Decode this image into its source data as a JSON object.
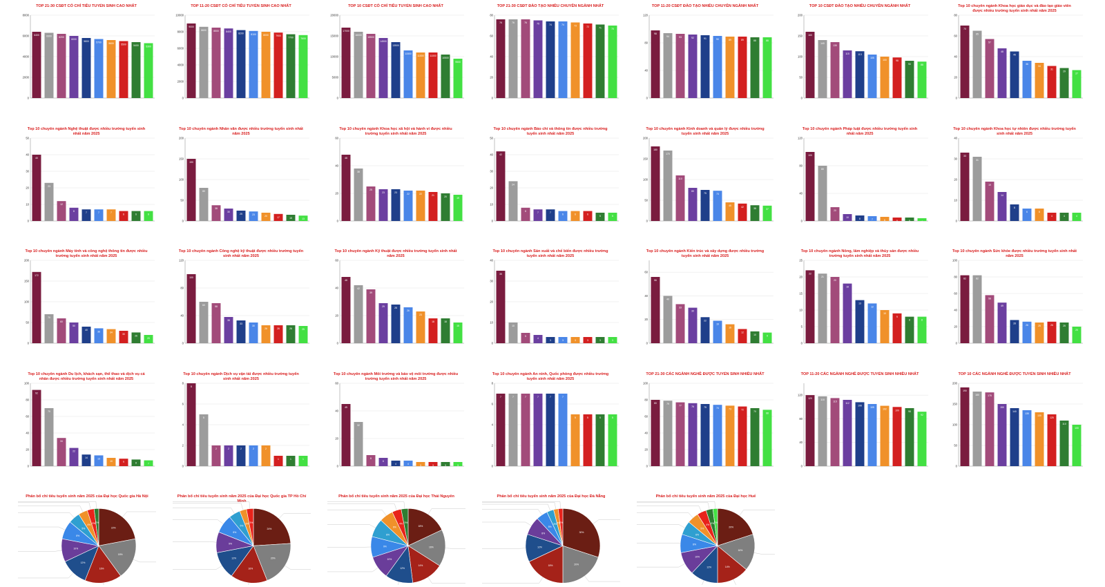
{
  "palette": [
    "#7a1c3f",
    "#9c9c9c",
    "#a24b7a",
    "#6b3fa0",
    "#1f3f8a",
    "#4a86e8",
    "#f0912a",
    "#d32020",
    "#2f7d32",
    "#43e043"
  ],
  "pie_palette": [
    "#6b1e14",
    "#7f7f7f",
    "#a52219",
    "#1f4e8c",
    "#6a3d9a",
    "#3a88e8",
    "#2f9fd0",
    "#f0912a",
    "#e8231b",
    "#2e7d32",
    "#43e043",
    "#ffe680"
  ],
  "chart_data": [
    {
      "type": "bar",
      "title": "TOP 21-30 CSĐT CÓ CHỈ TIÊU TUYỂN SINH CAO NHẤT",
      "categories": [
        "",
        "",
        "",
        "",
        "",
        "",
        "",
        "",
        "",
        ""
      ],
      "values": [
        6400,
        6300,
        6200,
        6000,
        5800,
        5700,
        5600,
        5500,
        5400,
        5300
      ],
      "ylim": [
        0,
        8000
      ],
      "yticks": [
        0,
        2000,
        4000,
        6000,
        8000
      ]
    },
    {
      "type": "bar",
      "title": "TOP 11-20 CSĐT CÓ CHỈ TIÊU TUYỂN SINH CAO NHẤT",
      "categories": [
        "",
        "",
        "",
        "",
        "",
        "",
        "",
        "",
        "",
        ""
      ],
      "values": [
        9000,
        8600,
        8500,
        8400,
        8200,
        8100,
        8000,
        7900,
        7700,
        7600
      ],
      "ylim": [
        0,
        10000
      ],
      "yticks": [
        0,
        2000,
        4000,
        6000,
        8000,
        10000
      ]
    },
    {
      "type": "bar",
      "title": "TOP 10 CSĐT CÓ CHỈ TIÊU TUYỂN SINH CAO NHẤT",
      "categories": [
        "",
        "",
        "",
        "",
        "",
        "",
        "",
        "",
        "",
        ""
      ],
      "values": [
        17000,
        16000,
        15500,
        14500,
        13500,
        11500,
        11000,
        11000,
        10500,
        9500
      ],
      "ylim": [
        0,
        20000
      ],
      "yticks": [
        0,
        5000,
        10000,
        15000,
        20000
      ]
    },
    {
      "type": "bar",
      "title": "TOP 21-30 CSĐT ĐÀO TẠO NHIỀU CHUYÊN NGÀNH NHẤT",
      "categories": [
        "",
        "",
        "",
        "",
        "",
        "",
        "",
        "",
        "",
        ""
      ],
      "values": [
        76,
        76,
        76,
        75,
        74,
        74,
        73,
        72,
        71,
        70
      ],
      "ylim": [
        0,
        80
      ],
      "yticks": [
        0,
        20,
        40,
        60,
        80
      ]
    },
    {
      "type": "bar",
      "title": "TOP 11-20 CSĐT ĐÀO TẠO NHIỀU CHUYÊN NGÀNH NHẤT",
      "categories": [
        "",
        "",
        "",
        "",
        "",
        "",
        "",
        "",
        "",
        ""
      ],
      "values": [
        98,
        94,
        93,
        92,
        91,
        90,
        89,
        89,
        88,
        88
      ],
      "ylim": [
        0,
        120
      ],
      "yticks": [
        0,
        40,
        80,
        120
      ]
    },
    {
      "type": "bar",
      "title": "TOP 10 CSĐT ĐÀO TẠO NHIỀU CHUYÊN NGÀNH NHẤT",
      "categories": [
        "",
        "",
        "",
        "",
        "",
        "",
        "",
        "",
        "",
        ""
      ],
      "values": [
        160,
        140,
        135,
        115,
        113,
        105,
        100,
        98,
        90,
        88
      ],
      "ylim": [
        0,
        200
      ],
      "yticks": [
        0,
        50,
        100,
        150,
        200
      ]
    },
    {
      "type": "bar",
      "title": "Top 10 chuyên ngành Khoa học giáo dục và đào tạo giáo viên được nhiều trường tuyển sinh nhất năm 2025",
      "categories": [
        "",
        "",
        "",
        "",
        "",
        "",
        "",
        "",
        "",
        ""
      ],
      "values": [
        70,
        65,
        57,
        48,
        45,
        36,
        34,
        31,
        29,
        27
      ],
      "ylim": [
        0,
        80
      ],
      "yticks": [
        0,
        20,
        40,
        60,
        80
      ]
    },
    {
      "type": "bar",
      "title": "Top 10 chuyên ngành Nghệ thuật được nhiều trường tuyển sinh nhất năm 2025",
      "categories": [
        "",
        "",
        "",
        "",
        "",
        "",
        "",
        "",
        "",
        ""
      ],
      "values": [
        40,
        23,
        12,
        8,
        7,
        7,
        7,
        6,
        6,
        6
      ],
      "ylim": [
        0,
        50
      ],
      "yticks": [
        0,
        10,
        20,
        30,
        40,
        50
      ]
    },
    {
      "type": "bar",
      "title": "Top 10 chuyên ngành Nhân văn được nhiều trường tuyển sinh nhất năm 2025",
      "categories": [
        "",
        "",
        "",
        "",
        "",
        "",
        "",
        "",
        "",
        ""
      ],
      "values": [
        150,
        80,
        38,
        30,
        25,
        23,
        20,
        17,
        15,
        13
      ],
      "ylim": [
        0,
        200
      ],
      "yticks": [
        0,
        50,
        100,
        150,
        200
      ]
    },
    {
      "type": "bar",
      "title": "Top 10 chuyên ngành Khoa học xã hội và hành vi được nhiều trường tuyển sinh nhất năm 2025",
      "categories": [
        "",
        "",
        "",
        "",
        "",
        "",
        "",
        "",
        "",
        ""
      ],
      "values": [
        48,
        38,
        25,
        23,
        23,
        22,
        22,
        21,
        20,
        19
      ],
      "ylim": [
        0,
        60
      ],
      "yticks": [
        0,
        20,
        40,
        60
      ]
    },
    {
      "type": "bar",
      "title": "Top 10 chuyên ngành Báo chí và thông tin được nhiều trường tuyển sinh nhất năm 2025",
      "categories": [
        "",
        "",
        "",
        "",
        "",
        "",
        "",
        "",
        "",
        ""
      ],
      "values": [
        42,
        24,
        8,
        7,
        7,
        6,
        6,
        6,
        5,
        5
      ],
      "ylim": [
        0,
        50
      ],
      "yticks": [
        0,
        10,
        20,
        30,
        40,
        50
      ]
    },
    {
      "type": "bar",
      "title": "Top 10 chuyên ngành Kinh doanh và quản lý được nhiều trường tuyển sinh nhất năm 2025",
      "categories": [
        "",
        "",
        "",
        "",
        "",
        "",
        "",
        "",
        "",
        ""
      ],
      "values": [
        180,
        170,
        110,
        80,
        75,
        73,
        45,
        42,
        38,
        37
      ],
      "ylim": [
        0,
        200
      ],
      "yticks": [
        0,
        50,
        100,
        150,
        200
      ]
    },
    {
      "type": "bar",
      "title": "Top 10 chuyên ngành Pháp luật được nhiều trường tuyển sinh nhất năm 2025",
      "categories": [
        "",
        "",
        "",
        "",
        "",
        "",
        "",
        "",
        "",
        ""
      ],
      "values": [
        100,
        80,
        20,
        10,
        8,
        7,
        6,
        5,
        5,
        4
      ],
      "ylim": [
        0,
        120
      ],
      "yticks": [
        0,
        40,
        80,
        120
      ]
    },
    {
      "type": "bar",
      "title": "Top 10 chuyên ngành Khoa học tự nhiên được nhiều trường tuyển sinh nhất năm 2025",
      "categories": [
        "",
        "",
        "",
        "",
        "",
        "",
        "",
        "",
        "",
        ""
      ],
      "values": [
        33,
        31,
        19,
        14,
        8,
        6,
        6,
        4,
        4,
        4
      ],
      "ylim": [
        0,
        40
      ],
      "yticks": [
        0,
        10,
        20,
        30,
        40
      ]
    },
    {
      "type": "bar",
      "title": "Top 10 chuyên ngành Máy tính và công nghệ thông tin được nhiều trường tuyển sinh nhất năm 2025",
      "categories": [
        "",
        "",
        "",
        "",
        "",
        "",
        "",
        "",
        "",
        ""
      ],
      "values": [
        172,
        70,
        60,
        50,
        40,
        36,
        34,
        30,
        26,
        20
      ],
      "ylim": [
        0,
        200
      ],
      "yticks": [
        0,
        50,
        100,
        150,
        200
      ]
    },
    {
      "type": "bar",
      "title": "Top 10 chuyên ngành Công nghệ kỹ thuật được nhiều trường tuyển sinh nhất năm 2025",
      "categories": [
        "",
        "",
        "",
        "",
        "",
        "",
        "",
        "",
        "",
        ""
      ],
      "values": [
        100,
        60,
        58,
        38,
        33,
        30,
        26,
        26,
        26,
        25
      ],
      "ylim": [
        0,
        120
      ],
      "yticks": [
        0,
        40,
        80,
        120
      ]
    },
    {
      "type": "bar",
      "title": "Top 10 chuyên ngành Kỹ thuật được nhiều trường tuyển sinh nhất năm 2025",
      "categories": [
        "",
        "",
        "",
        "",
        "",
        "",
        "",
        "",
        "",
        ""
      ],
      "values": [
        48,
        42,
        39,
        29,
        28,
        26,
        23,
        18,
        18,
        15
      ],
      "ylim": [
        0,
        60
      ],
      "yticks": [
        0,
        20,
        40,
        60
      ]
    },
    {
      "type": "bar",
      "title": "Top 10 chuyên ngành Sản xuất và chế biến được nhiều trường tuyển sinh nhất năm 2025",
      "categories": [
        "",
        "",
        "",
        "",
        "",
        "",
        "",
        "",
        "",
        ""
      ],
      "values": [
        35,
        10,
        5,
        4,
        3,
        3,
        3,
        3,
        3,
        3
      ],
      "ylim": [
        0,
        40
      ],
      "yticks": [
        0,
        10,
        20,
        30,
        40
      ]
    },
    {
      "type": "bar",
      "title": "Top 10 chuyên ngành Kiến trúc và xây dựng được nhiều trường tuyển sinh nhất năm 2025",
      "categories": [
        "",
        "",
        "",
        "",
        "",
        "",
        "",
        "",
        "",
        ""
      ],
      "values": [
        56,
        40,
        33,
        30,
        22,
        19,
        16,
        12,
        10,
        9
      ],
      "ylim": [
        0,
        70
      ],
      "yticks": [
        0,
        20,
        40,
        60
      ]
    },
    {
      "type": "bar",
      "title": "Top 10 chuyên ngành Nông, lâm nghiệp và thủy sản được nhiều trường tuyển sinh nhất năm 2025",
      "categories": [
        "",
        "",
        "",
        "",
        "",
        "",
        "",
        "",
        "",
        ""
      ],
      "values": [
        22,
        21,
        20,
        18,
        13,
        12,
        10,
        9,
        8,
        8
      ],
      "ylim": [
        0,
        25
      ],
      "yticks": [
        0,
        5,
        10,
        15,
        20,
        25
      ]
    },
    {
      "type": "bar",
      "title": "Top 10 chuyên ngành Sức khỏe được nhiều trường tuyển sinh nhất năm 2025",
      "categories": [
        "",
        "",
        "",
        "",
        "",
        "",
        "",
        "",
        "",
        ""
      ],
      "values": [
        82,
        82,
        58,
        49,
        28,
        26,
        25,
        26,
        25,
        20
      ],
      "ylim": [
        0,
        100
      ],
      "yticks": [
        0,
        20,
        40,
        60,
        80,
        100
      ]
    },
    {
      "type": "bar",
      "title": "Top 10 chuyên ngành Du lịch, khách sạn, thể thao và dịch vụ cá nhân được nhiều trường tuyển sinh nhất năm 2025",
      "categories": [
        "",
        "",
        "",
        "",
        "",
        "",
        "",
        "",
        "",
        ""
      ],
      "values": [
        92,
        70,
        34,
        22,
        14,
        13,
        10,
        9,
        8,
        7
      ],
      "ylim": [
        0,
        100
      ],
      "yticks": [
        0,
        20,
        40,
        60,
        80,
        100
      ]
    },
    {
      "type": "bar",
      "title": "Top 10 chuyên ngành Dịch vụ vận tải được nhiều trường tuyển sinh nhất năm 2025",
      "categories": [
        "",
        "",
        "",
        "",
        "",
        "",
        "",
        "",
        "",
        ""
      ],
      "values": [
        8,
        5,
        2,
        2,
        2,
        2,
        2,
        1,
        1,
        1
      ],
      "ylim": [
        0,
        8
      ],
      "yticks": [
        0,
        2,
        4,
        6,
        8
      ]
    },
    {
      "type": "bar",
      "title": "Top 10 chuyên ngành Môi trường và bảo vệ môi trường được nhiều trường tuyển sinh nhất năm 2025",
      "categories": [
        "",
        "",
        "",
        "",
        "",
        "",
        "",
        "",
        "",
        ""
      ],
      "values": [
        45,
        32,
        8,
        6,
        4,
        4,
        3,
        3,
        3,
        3
      ],
      "ylim": [
        0,
        60
      ],
      "yticks": [
        0,
        20,
        40,
        60
      ]
    },
    {
      "type": "bar",
      "title": "Top 10 chuyên ngành An ninh, Quốc phòng được nhiều trường tuyển sinh nhất năm 2025",
      "categories": [
        "",
        "",
        "",
        "",
        "",
        "",
        "",
        "",
        "",
        ""
      ],
      "values": [
        7,
        7,
        7,
        7,
        7,
        7,
        5,
        5,
        5,
        5
      ],
      "ylim": [
        0,
        8
      ],
      "yticks": [
        0,
        2,
        4,
        6,
        8
      ]
    },
    {
      "type": "bar",
      "title": "TOP 21-30 CÁC NGÀNH NGHỀ ĐƯỢC TUYỂN SINH NHIỀU NHẤT",
      "categories": [
        "",
        "",
        "",
        "",
        "",
        "",
        "",
        "",
        "",
        ""
      ],
      "values": [
        80,
        79,
        77,
        76,
        75,
        74,
        73,
        72,
        70,
        68
      ],
      "ylim": [
        0,
        100
      ],
      "yticks": [
        0,
        20,
        40,
        60,
        80,
        100
      ]
    },
    {
      "type": "bar",
      "title": "TOP 11-20 CÁC NGÀNH NGHỀ ĐƯỢC TUYỂN SINH NHIỀU NHẤT",
      "categories": [
        "",
        "",
        "",
        "",
        "",
        "",
        "",
        "",
        "",
        ""
      ],
      "values": [
        120,
        118,
        115,
        112,
        108,
        105,
        102,
        100,
        98,
        92
      ],
      "ylim": [
        0,
        140
      ],
      "yticks": [
        0,
        40,
        80,
        120
      ]
    },
    {
      "type": "bar",
      "title": "TOP 10 CÁC NGÀNH NGHỀ ĐƯỢC TUYỂN SINH NHIỀU NHẤT",
      "categories": [
        "",
        "",
        "",
        "",
        "",
        "",
        "",
        "",
        "",
        ""
      ],
      "values": [
        190,
        180,
        178,
        150,
        140,
        135,
        130,
        125,
        110,
        100
      ],
      "ylim": [
        0,
        200
      ],
      "yticks": [
        0,
        50,
        100,
        150,
        200
      ]
    },
    {
      "type": "pie",
      "title": "Phân bổ chỉ tiêu tuyển sinh năm 2025 của Đại học Quốc gia Hà Nội",
      "values": [
        22,
        18,
        16,
        12,
        10,
        8,
        5,
        4,
        3,
        2
      ]
    },
    {
      "type": "pie",
      "title": "Phân bổ chỉ tiêu tuyển sinh năm 2025 của Đại học Quốc gia TP Hồ Chí Minh",
      "values": [
        24,
        20,
        16,
        12,
        9,
        8,
        5,
        3,
        3
      ]
    },
    {
      "type": "pie",
      "title": "Phân bổ chỉ tiêu tuyển sinh năm 2025 của Đại học Thái Nguyên",
      "values": [
        18,
        16,
        14,
        12,
        10,
        9,
        8,
        6,
        4,
        3
      ]
    },
    {
      "type": "pie",
      "title": "Phân bổ chỉ tiêu tuyển sinh năm 2025 của Đại học Đà Nẵng",
      "values": [
        30,
        20,
        18,
        12,
        8,
        5,
        3,
        2,
        2
      ]
    },
    {
      "type": "pie",
      "title": "Phân bổ chỉ tiêu tuyển sinh năm 2025 của Đại học Huế",
      "values": [
        20,
        16,
        14,
        12,
        10,
        8,
        6,
        5,
        4,
        3,
        2
      ]
    }
  ]
}
